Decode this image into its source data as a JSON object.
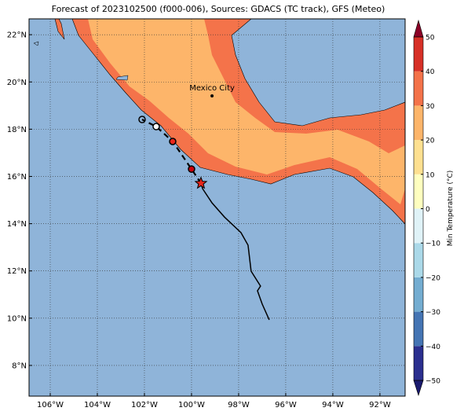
{
  "title": "Forecast of 2023102500 (f000-006), Sources: GDACS (TC track), GFS (Meteo)",
  "map": {
    "xlim": [
      -106.9,
      -90.93
    ],
    "ylim": [
      6.7,
      22.67
    ],
    "xticks": [
      {
        "value": -106,
        "label": "106°W"
      },
      {
        "value": -104,
        "label": "104°W"
      },
      {
        "value": -102,
        "label": "102°W"
      },
      {
        "value": -100,
        "label": "100°W"
      },
      {
        "value": -98,
        "label": "98°W"
      },
      {
        "value": -96,
        "label": "96°W"
      },
      {
        "value": -94,
        "label": "94°W"
      },
      {
        "value": -92,
        "label": "92°W"
      }
    ],
    "yticks": [
      {
        "value": 8,
        "label": "8°N"
      },
      {
        "value": 10,
        "label": "10°N"
      },
      {
        "value": 12,
        "label": "12°N"
      },
      {
        "value": 14,
        "label": "14°N"
      },
      {
        "value": 16,
        "label": "16°N"
      },
      {
        "value": 18,
        "label": "18°N"
      },
      {
        "value": 20,
        "label": "20°N"
      },
      {
        "value": 22,
        "label": "22°N"
      }
    ],
    "grid": true,
    "track": {
      "lon": [
        -96.7,
        -97.0,
        -97.2,
        -97.07,
        -97.47,
        -97.6,
        -97.9,
        -98.6,
        -99.13,
        -99.53,
        -99.6
      ],
      "lat": [
        9.93,
        10.6,
        11.16,
        11.36,
        11.99,
        13.09,
        13.62,
        14.28,
        14.88,
        15.48,
        15.71
      ],
      "color": "#000000"
    },
    "forecast": {
      "lon": [
        -99.6,
        -100.0,
        -100.8,
        -101.5,
        -102.1
      ],
      "lat": [
        15.71,
        16.31,
        17.48,
        18.11,
        18.41
      ],
      "color": "#000000"
    },
    "markers": [
      {
        "lon": -99.6,
        "lat": 15.71,
        "shape": "star",
        "color": "#e8261b"
      },
      {
        "lon": -100.0,
        "lat": 16.31,
        "shape": "circle",
        "color": "#c8000c"
      },
      {
        "lon": -100.8,
        "lat": 17.48,
        "shape": "circle",
        "color": "#e8261b"
      },
      {
        "lon": -101.5,
        "lat": 18.11,
        "shape": "circle",
        "color": "#ffffff"
      },
      {
        "lon": -102.1,
        "lat": 18.41,
        "shape": "circle",
        "color": "none"
      }
    ],
    "city": {
      "name": "Mexico City",
      "lon": -99.13,
      "lat": 19.41
    }
  },
  "colorbar": {
    "label": "Min Temperature (°C)",
    "lim": [
      -50,
      50
    ],
    "levels": [
      -50,
      -40,
      -30,
      -20,
      -10,
      0,
      10,
      20,
      30,
      40,
      50
    ],
    "colors": [
      "#2b2f8f",
      "#4575b4",
      "#74add1",
      "#abd9e9",
      "#e0f3f8",
      "#ffffbf",
      "#fee090",
      "#fdb56a",
      "#f4734a",
      "#d73027"
    ],
    "extend_colors": [
      "#1a1a6e",
      "#8b0026"
    ],
    "ticks": [
      50,
      40,
      30,
      20,
      10,
      0,
      {
        "value": -10,
        "label": "−10"
      },
      {
        "value": -20,
        "label": "−20"
      },
      {
        "value": -30,
        "label": "−30"
      },
      {
        "value": -40,
        "label": "−40"
      },
      {
        "value": -50,
        "label": "−50"
      }
    ]
  }
}
